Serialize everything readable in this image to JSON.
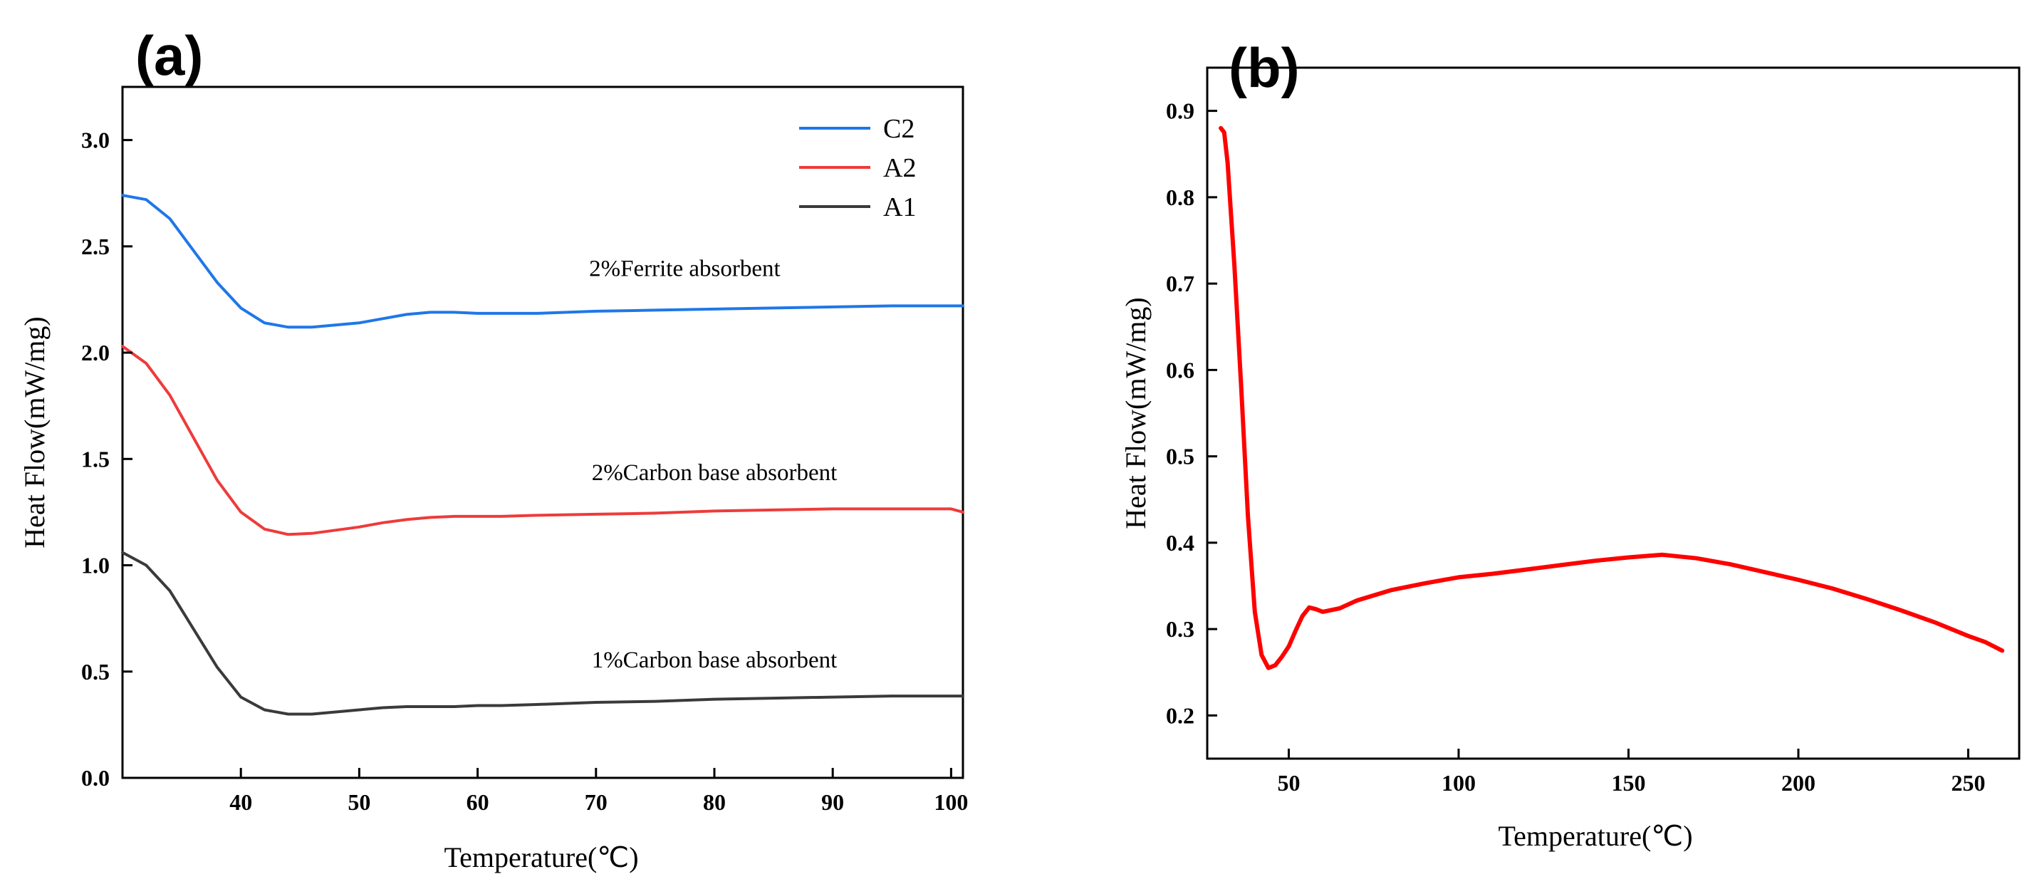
{
  "chart_data": [
    {
      "panel_label": "(a)",
      "type": "line",
      "xlabel": "Temperature(℃)",
      "ylabel": "Heat Flow(mW/mg)",
      "xlim": [
        30,
        101
      ],
      "ylim": [
        0,
        3.25
      ],
      "xticks": [
        40,
        50,
        60,
        70,
        80,
        90,
        100
      ],
      "yticks": [
        0.0,
        0.5,
        1.0,
        1.5,
        2.0,
        2.5,
        3.0
      ],
      "xtick_labels": [
        "40",
        "50",
        "60",
        "70",
        "80",
        "90",
        "100"
      ],
      "ytick_labels": [
        "0.0",
        "0.5",
        "1.0",
        "1.5",
        "2.0",
        "2.5",
        "3.0"
      ],
      "grid": false,
      "legend_position": "top-right",
      "series": [
        {
          "name": "C2",
          "color": "#1f77e8",
          "x": [
            30,
            32,
            34,
            36,
            38,
            40,
            42,
            44,
            46,
            48,
            50,
            52,
            54,
            56,
            58,
            60,
            62,
            65,
            70,
            75,
            80,
            85,
            90,
            95,
            100,
            101
          ],
          "y": [
            2.74,
            2.72,
            2.63,
            2.48,
            2.33,
            2.21,
            2.14,
            2.12,
            2.12,
            2.13,
            2.14,
            2.16,
            2.18,
            2.19,
            2.19,
            2.185,
            2.185,
            2.185,
            2.195,
            2.2,
            2.205,
            2.21,
            2.215,
            2.22,
            2.22,
            2.22
          ]
        },
        {
          "name": "A2",
          "color": "#ee3b3b",
          "x": [
            30,
            32,
            34,
            36,
            38,
            40,
            42,
            44,
            46,
            48,
            50,
            52,
            54,
            56,
            58,
            60,
            62,
            65,
            70,
            75,
            80,
            85,
            90,
            95,
            100,
            101
          ],
          "y": [
            2.03,
            1.95,
            1.8,
            1.6,
            1.4,
            1.25,
            1.17,
            1.145,
            1.15,
            1.165,
            1.18,
            1.2,
            1.215,
            1.225,
            1.23,
            1.23,
            1.23,
            1.235,
            1.24,
            1.245,
            1.255,
            1.26,
            1.265,
            1.265,
            1.265,
            1.25
          ]
        },
        {
          "name": "A1",
          "color": "#3a3a3a",
          "x": [
            30,
            32,
            34,
            36,
            38,
            40,
            42,
            44,
            46,
            48,
            50,
            52,
            54,
            56,
            58,
            60,
            62,
            65,
            70,
            75,
            80,
            85,
            90,
            95,
            100,
            101
          ],
          "y": [
            1.06,
            1.0,
            0.88,
            0.7,
            0.52,
            0.38,
            0.32,
            0.3,
            0.3,
            0.31,
            0.32,
            0.33,
            0.335,
            0.335,
            0.335,
            0.34,
            0.34,
            0.345,
            0.355,
            0.36,
            0.37,
            0.375,
            0.38,
            0.385,
            0.385,
            0.385
          ]
        }
      ],
      "annotations": [
        {
          "text": "2%Ferrite absorbent",
          "x": 77.5,
          "y": 2.36
        },
        {
          "text": "2%Carbon base absorbent",
          "x": 80,
          "y": 1.4
        },
        {
          "text": "1%Carbon base absorbent",
          "x": 80,
          "y": 0.52
        }
      ]
    },
    {
      "panel_label": "(b)",
      "type": "line",
      "xlabel": "Temperature(℃)",
      "ylabel": "Heat Flow(mW/mg)",
      "xlim": [
        26,
        265
      ],
      "ylim": [
        0.15,
        0.95
      ],
      "xticks": [
        50,
        100,
        150,
        200,
        250
      ],
      "yticks": [
        0.2,
        0.3,
        0.4,
        0.5,
        0.6,
        0.7,
        0.8,
        0.9
      ],
      "xtick_labels": [
        "50",
        "100",
        "150",
        "200",
        "250"
      ],
      "ytick_labels": [
        "0.2",
        "0.3",
        "0.4",
        "0.5",
        "0.6",
        "0.7",
        "0.8",
        "0.9"
      ],
      "grid": false,
      "series": [
        {
          "color": "#ff0000",
          "x": [
            30,
            31,
            32,
            34,
            36,
            38,
            40,
            42,
            44,
            46,
            48,
            50,
            52,
            54,
            56,
            58,
            60,
            65,
            70,
            80,
            90,
            100,
            110,
            120,
            130,
            140,
            150,
            160,
            170,
            180,
            190,
            200,
            210,
            220,
            230,
            240,
            250,
            255,
            260
          ],
          "y": [
            0.88,
            0.875,
            0.84,
            0.72,
            0.58,
            0.43,
            0.32,
            0.27,
            0.255,
            0.258,
            0.268,
            0.28,
            0.298,
            0.315,
            0.325,
            0.323,
            0.32,
            0.324,
            0.333,
            0.345,
            0.353,
            0.36,
            0.364,
            0.369,
            0.374,
            0.379,
            0.383,
            0.386,
            0.382,
            0.375,
            0.366,
            0.357,
            0.347,
            0.335,
            0.322,
            0.308,
            0.292,
            0.285,
            0.275
          ]
        }
      ]
    }
  ]
}
